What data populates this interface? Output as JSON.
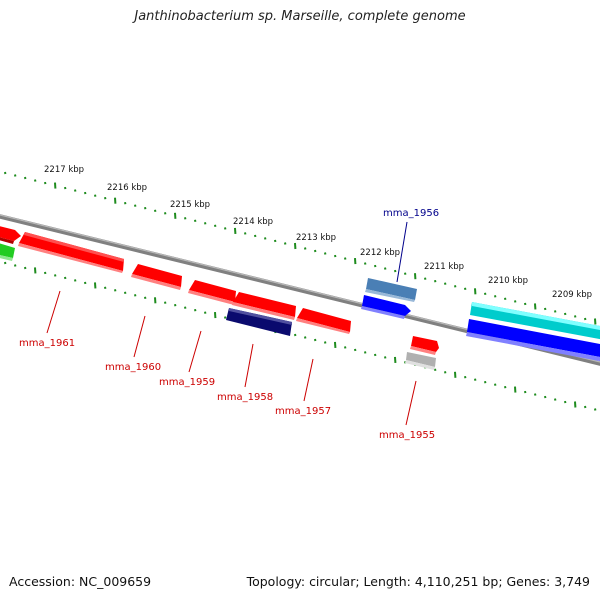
{
  "title": "Janthinobacterium sp. Marseille, complete genome",
  "footer": {
    "accession_label": "Accession:",
    "accession": "NC_009659",
    "topology_label": "Topology:",
    "topology": "circular",
    "length_label": "Length:",
    "length": "4,110,251 bp",
    "genes_label": "Genes:",
    "genes": "3,749"
  },
  "kbp_labels": [
    "2217 kbp",
    "2216 kbp",
    "2215 kbp",
    "2214 kbp",
    "2213 kbp",
    "2212 kbp",
    "2211 kbp",
    "2210 kbp",
    "2209 kbp"
  ],
  "gene_labels": {
    "mma_1956": "mma_1956",
    "mma_1961": "mma_1961",
    "mma_1960": "mma_1960",
    "mma_1959": "mma_1959",
    "mma_1958": "mma_1958",
    "mma_1957": "mma_1957",
    "mma_1955": "mma_1955"
  },
  "colors": {
    "backbone": "#808080",
    "tick": "#1e8c1e",
    "gene_red": "#ff0000",
    "gene_label_red": "#cc0000",
    "gene_label_blue": "#00008b",
    "navy": "#0a0a6e",
    "steelblue": "#4a7fb5",
    "blue": "#0000ff",
    "cyan": "#00cccc",
    "green": "#22cc22",
    "grey": "#b0b0b0"
  }
}
